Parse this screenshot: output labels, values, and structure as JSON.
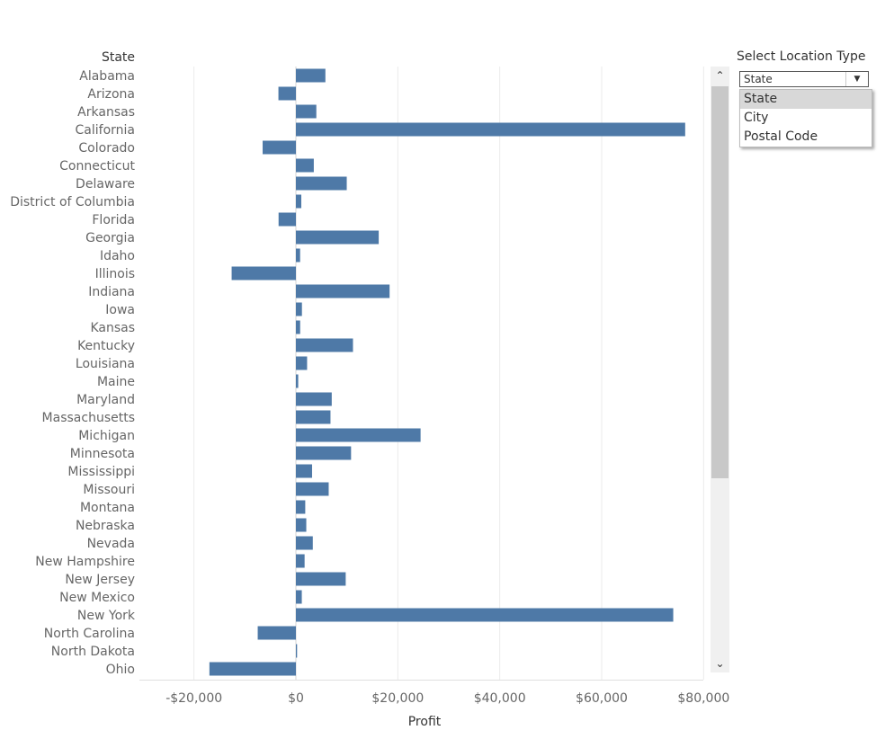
{
  "chart_data": {
    "type": "bar",
    "orientation": "horizontal",
    "row_header": "State",
    "xlabel": "Profit",
    "xlim": [
      -30000,
      81000
    ],
    "x_ticks": [
      -20000,
      0,
      20000,
      40000,
      60000,
      80000
    ],
    "x_tick_labels": [
      "-$20,000",
      "$0",
      "$20,000",
      "$40,000",
      "$60,000",
      "$80,000"
    ],
    "grid": "vertical gridlines",
    "bar_color": "#4e79a7",
    "categories": [
      "Alabama",
      "Arizona",
      "Arkansas",
      "California",
      "Colorado",
      "Connecticut",
      "Delaware",
      "District of Columbia",
      "Florida",
      "Georgia",
      "Idaho",
      "Illinois",
      "Indiana",
      "Iowa",
      "Kansas",
      "Kentucky",
      "Louisiana",
      "Maine",
      "Maryland",
      "Massachusetts",
      "Michigan",
      "Minnesota",
      "Mississippi",
      "Missouri",
      "Montana",
      "Nebraska",
      "Nevada",
      "New Hampshire",
      "New Jersey",
      "New Mexico",
      "New York",
      "North Carolina",
      "North Dakota",
      "Ohio"
    ],
    "values": [
      5787,
      -3428,
      4009,
      76381,
      -6528,
      3511,
      9977,
      1060,
      -3399,
      16250,
      827,
      -12608,
      18383,
      1184,
      836,
      11200,
      2196,
      455,
      7031,
      6786,
      24463,
      10823,
      3173,
      6436,
      1834,
      2037,
      3317,
      1707,
      9773,
      1158,
      74039,
      -7491,
      230,
      -16971
    ]
  },
  "filter": {
    "title": "Select Location Type",
    "selected": "State",
    "options": [
      "State",
      "City",
      "Postal Code"
    ]
  },
  "scrollbar": {
    "up_icon": "chevron-up-icon",
    "down_icon": "chevron-down-icon"
  }
}
